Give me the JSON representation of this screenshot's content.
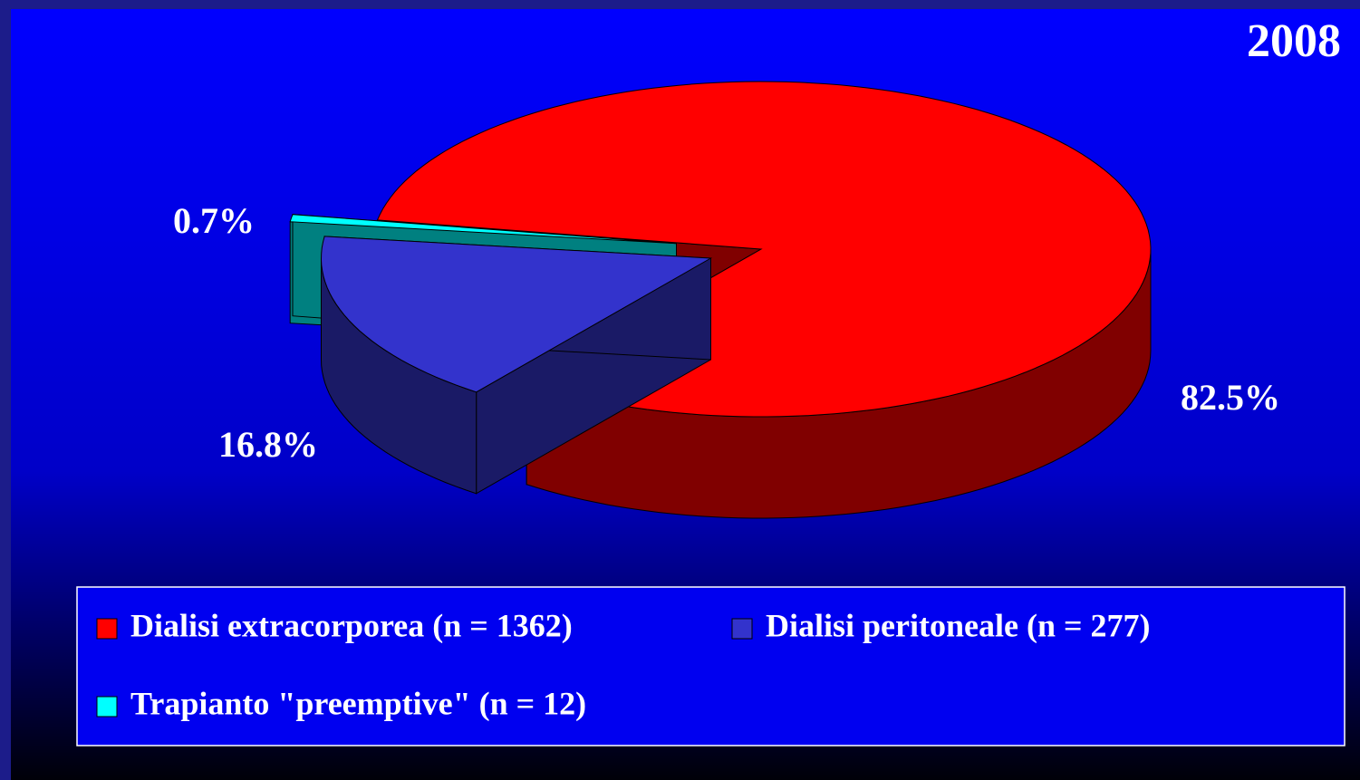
{
  "chart_data": {
    "type": "pie",
    "title": "2008",
    "categories": [
      "Dialisi extracorporea (n = 1362)",
      "Dialisi peritoneale (n = 277)",
      "Trapianto \"preemptive\" (n = 12)"
    ],
    "values": [
      82.5,
      16.8,
      0.7
    ],
    "value_labels": [
      "82.5%",
      "16.8%",
      "0.7%"
    ],
    "colors": [
      "#ff0000",
      "#3333cc",
      "#00ffff"
    ]
  }
}
